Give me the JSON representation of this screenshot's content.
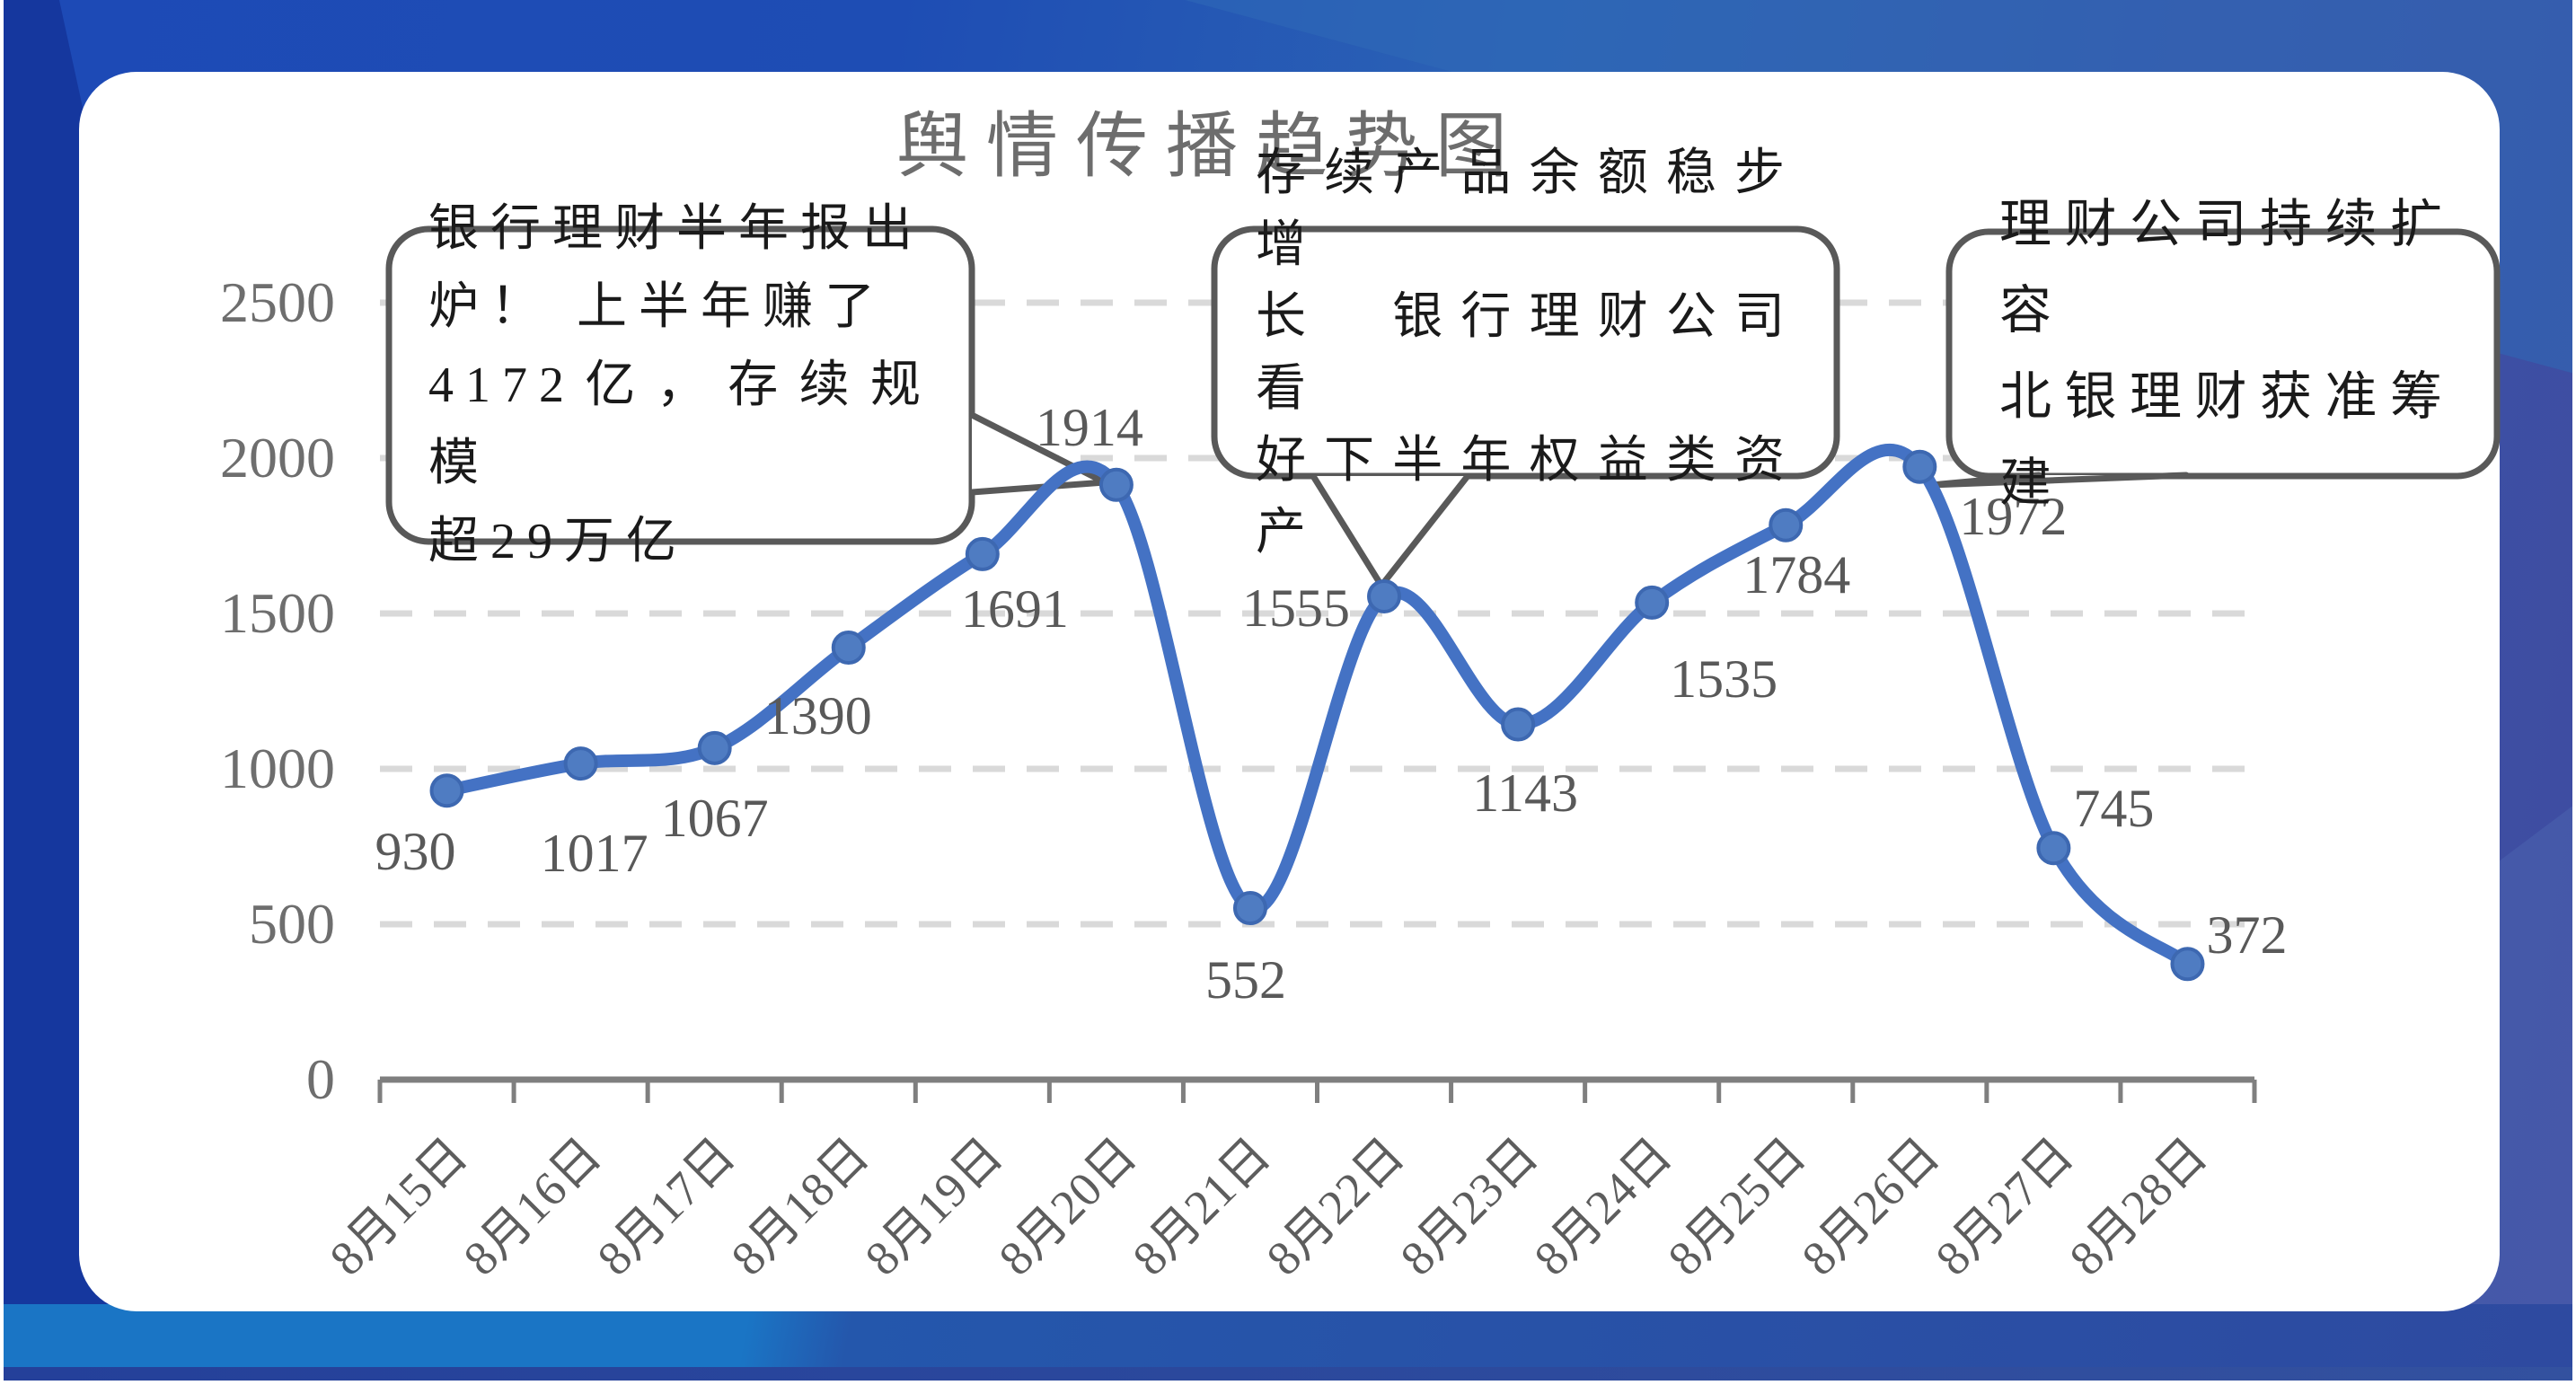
{
  "title": "舆情传播趋势图",
  "chart_data": {
    "type": "line",
    "title": "舆情传播趋势图",
    "categories": [
      "8月15日",
      "8月16日",
      "8月17日",
      "8月18日",
      "8月19日",
      "8月20日",
      "8月21日",
      "8月22日",
      "8月23日",
      "8月24日",
      "8月25日",
      "8月26日",
      "8月27日",
      "8月28日"
    ],
    "values": [
      930,
      1017,
      1067,
      1390,
      1691,
      1914,
      552,
      1555,
      1143,
      1535,
      1784,
      1972,
      745,
      372
    ],
    "data_labels": [
      "930",
      "1017",
      "1067",
      "1390",
      "1691",
      "1914",
      "552",
      "1555",
      "1143",
      "1535",
      "1784",
      "1972",
      "745",
      "372"
    ],
    "xlabel": "",
    "ylabel": "",
    "ylim": [
      0,
      2500
    ],
    "yticks": [
      0,
      500,
      1000,
      1500,
      2000,
      2500
    ],
    "grid": "horizontal-dashed",
    "legend": "none",
    "smooth": true,
    "annotations": [
      {
        "target_category": "8月20日",
        "target_value": 1914,
        "text": "银行理财半年报出\n炉！ 上半年赚了\n4172亿，存续规模\n超29万亿"
      },
      {
        "target_category": "8月22日",
        "target_value": 1555,
        "text": "存续产品余额稳步增\n长　银行理财公司看\n好下半年权益类资产"
      },
      {
        "target_category": "8月26日",
        "target_value": 1972,
        "text": "理财公司持续扩容\n北银理财获准筹建"
      }
    ]
  },
  "colors": {
    "line": "#4472c4",
    "marker_fill": "#4f7cc2",
    "marker_edge": "#3d68b1",
    "gridline": "#d9d9d9",
    "axis": "#7f7f7f",
    "data_label": "#595959",
    "tick_label": "#6e6e6e",
    "title": "#6d6d6d",
    "bubble_border": "#595959",
    "bubble_fill": "#ffffff",
    "bg_blue": "#1d49b5",
    "bg_indigo": "#3f4ba0",
    "bg_cyan_band": "#1a75c5"
  }
}
